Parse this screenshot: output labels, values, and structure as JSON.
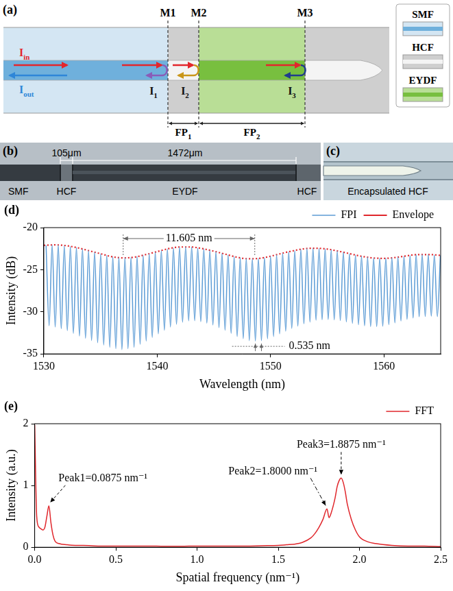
{
  "schematic": {
    "letter": "(a)",
    "mirrors": [
      "M1",
      "M2",
      "M3"
    ],
    "incident": {
      "main": "I",
      "sub": "in"
    },
    "output": {
      "main": "I",
      "sub": "out"
    },
    "reflections": [
      {
        "main": "I",
        "sub": "1"
      },
      {
        "main": "I",
        "sub": "2"
      },
      {
        "main": "I",
        "sub": "3"
      }
    ],
    "cavities": [
      {
        "main": "FP",
        "sub": "1"
      },
      {
        "main": "FP",
        "sub": "2"
      }
    ],
    "legend": [
      {
        "label": "SMF",
        "color": "#d4e6f3"
      },
      {
        "label": "HCF",
        "color": "#cfcfcf"
      },
      {
        "label": "EYDF",
        "color": "#b9de96"
      }
    ]
  },
  "micrograph": {
    "letter": "(b)",
    "labels": [
      "SMF",
      "HCF",
      "EYDF",
      "HCF"
    ],
    "dimensions": [
      "105μm",
      "1472μm"
    ]
  },
  "inset": {
    "letter": "(c)",
    "label": "Encapsulated HCF"
  },
  "chart_data": [
    {
      "letter": "(d)",
      "type": "line",
      "x_label": "Wavelength (nm)",
      "y_label": "Intensity (dB)",
      "xlim": [
        1530,
        1565
      ],
      "xticks": [
        1530,
        1540,
        1550,
        1560
      ],
      "ylim": [
        -35,
        -20
      ],
      "yticks": [
        -35,
        -30,
        -25,
        -20
      ],
      "grid": false,
      "legend": "top-right",
      "series": [
        {
          "name": "FPI",
          "color": "#5b9bd5",
          "line_style": "solid",
          "x": [
            1530.2,
            1530.468,
            1530.735,
            1531.003,
            1531.27,
            1531.538,
            1531.805,
            1532.073,
            1532.34,
            1532.608,
            1532.875,
            1533.143,
            1533.41,
            1533.678,
            1533.945,
            1534.213,
            1534.48,
            1534.748,
            1535.015,
            1535.283,
            1535.55,
            1535.818,
            1536.085,
            1536.353,
            1536.62,
            1536.888,
            1537.155,
            1537.423,
            1537.69,
            1537.958,
            1538.225,
            1538.493,
            1538.76,
            1539.028,
            1539.295,
            1539.563,
            1539.83,
            1540.098,
            1540.365,
            1540.633,
            1540.9,
            1541.168,
            1541.435,
            1541.703,
            1541.97,
            1542.238,
            1542.505,
            1542.773,
            1543.04,
            1543.308,
            1543.575,
            1543.843,
            1544.11,
            1544.378,
            1544.645,
            1544.913,
            1545.18,
            1545.448,
            1545.715,
            1545.983,
            1546.25,
            1546.518,
            1546.785,
            1547.053,
            1547.32,
            1547.588,
            1547.855,
            1548.123,
            1548.39,
            1548.658,
            1548.925,
            1549.193,
            1549.46,
            1549.728,
            1549.995,
            1550.263,
            1550.53,
            1550.798,
            1551.065,
            1551.333,
            1551.6,
            1551.868,
            1552.135,
            1552.403,
            1552.67,
            1552.938,
            1553.205,
            1553.473,
            1553.74,
            1554.008,
            1554.275,
            1554.543,
            1554.81,
            1555.078,
            1555.345,
            1555.613,
            1555.88,
            1556.148,
            1556.415,
            1556.683,
            1556.95,
            1557.218,
            1557.485,
            1557.753,
            1558.02,
            1558.288,
            1558.555,
            1558.823,
            1559.09,
            1559.358,
            1559.625,
            1559.893,
            1560.16,
            1560.428,
            1560.695,
            1560.963,
            1561.23,
            1561.498,
            1561.765,
            1562.033,
            1562.3,
            1562.568,
            1562.835,
            1563.103,
            1563.37,
            1563.638,
            1563.905,
            1564.173,
            1564.44,
            1564.708,
            1564.975
          ],
          "values": [
            -22.09,
            -31.64,
            -22.06,
            -31.8,
            -22.08,
            -32.02,
            -22.13,
            -32.24,
            -22.24,
            -32.56,
            -22.37,
            -32.87,
            -22.54,
            -33.14,
            -22.73,
            -33.41,
            -22.92,
            -33.67,
            -23.11,
            -33.94,
            -23.29,
            -34.21,
            -23.46,
            -34.37,
            -23.54,
            -34.48,
            -23.58,
            -34.37,
            -23.53,
            -34.21,
            -23.43,
            -33.85,
            -23.27,
            -33.48,
            -23.1,
            -33.05,
            -22.91,
            -32.62,
            -22.72,
            -32.19,
            -22.54,
            -31.8,
            -22.41,
            -31.48,
            -22.31,
            -31.23,
            -22.3,
            -31.07,
            -22.31,
            -31.06,
            -22.42,
            -31.17,
            -22.53,
            -31.35,
            -22.69,
            -31.57,
            -22.86,
            -31.87,
            -23.05,
            -32.19,
            -23.24,
            -32.56,
            -23.42,
            -32.93,
            -23.56,
            -33.19,
            -23.67,
            -33.41,
            -23.68,
            -33.47,
            -23.65,
            -33.42,
            -23.54,
            -33.21,
            -23.4,
            -32.94,
            -23.21,
            -32.62,
            -23.03,
            -32.3,
            -22.87,
            -31.98,
            -22.72,
            -31.7,
            -22.58,
            -31.43,
            -22.49,
            -31.21,
            -22.46,
            -31.0,
            -22.48,
            -30.95,
            -22.53,
            -30.91,
            -22.64,
            -30.96,
            -22.77,
            -31.04,
            -22.92,
            -31.2,
            -23.09,
            -31.37,
            -23.25,
            -31.53,
            -23.41,
            -31.66,
            -23.51,
            -31.76,
            -23.6,
            -31.76,
            -23.63,
            -31.71,
            -23.63,
            -31.53,
            -23.58,
            -31.31,
            -23.5,
            -31.1,
            -23.4,
            -30.89,
            -23.31,
            -30.73,
            -23.22,
            -30.59,
            -23.2,
            -30.54,
            -23.2,
            -30.52,
            -23.24,
            -30.57,
            -23.3
          ]
        },
        {
          "name": "Envelope",
          "color": "#e0262b",
          "line_style": "dotted",
          "x": [
            1530,
            1531,
            1532,
            1533,
            1534,
            1535,
            1536,
            1537,
            1538,
            1539,
            1540,
            1541,
            1542,
            1543,
            1544,
            1545,
            1546,
            1547,
            1548,
            1549,
            1550,
            1551,
            1552,
            1553,
            1554,
            1555,
            1556,
            1557,
            1558,
            1559,
            1560,
            1561,
            1562,
            1563,
            1564,
            1565
          ],
          "values": [
            -22.1,
            -22.05,
            -22.15,
            -22.4,
            -22.75,
            -23.1,
            -23.45,
            -23.6,
            -23.5,
            -23.2,
            -22.85,
            -22.5,
            -22.3,
            -22.3,
            -22.5,
            -22.8,
            -23.15,
            -23.5,
            -23.7,
            -23.65,
            -23.4,
            -23.05,
            -22.75,
            -22.5,
            -22.45,
            -22.55,
            -22.8,
            -23.1,
            -23.4,
            -23.6,
            -23.65,
            -23.55,
            -23.35,
            -23.2,
            -23.2,
            -23.3
          ]
        }
      ],
      "annotations": [
        {
          "text": "11.605 nm",
          "x": [
            1537.0,
            1548.605
          ],
          "y": -21.3
        },
        {
          "text": "0.535 nm",
          "x": [
            1548.658,
            1549.193
          ],
          "y": -34.1
        }
      ]
    },
    {
      "letter": "(e)",
      "type": "line",
      "x_label": "Spatial frequency (nm⁻¹)",
      "y_label": "Intensity (a.u.)",
      "xlim": [
        0,
        2.5
      ],
      "xticks": [
        {
          "value": 0,
          "label": "0.0"
        },
        0.5,
        {
          "value": 1,
          "label": "1.0"
        },
        1.5,
        {
          "value": 2,
          "label": "2.0"
        },
        2.5
      ],
      "ylim": [
        0,
        2
      ],
      "yticks": [
        0,
        1,
        2
      ],
      "grid": false,
      "legend": "top-right",
      "series": [
        {
          "name": "FFT",
          "color": "#e0262b",
          "line_style": "solid",
          "x": [
            0,
            0.0125,
            0.025,
            0.0375,
            0.05,
            0.0625,
            0.075,
            0.0875,
            0.1,
            0.1125,
            0.125,
            0.15,
            0.2,
            0.25,
            0.3,
            0.4,
            0.5,
            0.6,
            0.7,
            0.8,
            0.9,
            1.0,
            1.1,
            1.2,
            1.3,
            1.4,
            1.5,
            1.55,
            1.6,
            1.65,
            1.7,
            1.725,
            1.75,
            1.775,
            1.8,
            1.8125,
            1.825,
            1.85,
            1.8625,
            1.875,
            1.8875,
            1.9,
            1.9125,
            1.925,
            1.95,
            1.975,
            2.0,
            2.05,
            2.1,
            2.2,
            2.3,
            2.4,
            2.5
          ],
          "values": [
            1.98,
            0.5,
            0.33,
            0.3,
            0.28,
            0.32,
            0.5,
            0.67,
            0.4,
            0.2,
            0.1,
            0.06,
            0.04,
            0.03,
            0.03,
            0.02,
            0.02,
            0.02,
            0.02,
            0.015,
            0.015,
            0.02,
            0.02,
            0.02,
            0.02,
            0.025,
            0.03,
            0.04,
            0.05,
            0.08,
            0.15,
            0.22,
            0.32,
            0.45,
            0.62,
            0.48,
            0.55,
            0.8,
            0.98,
            1.08,
            1.12,
            1.05,
            0.9,
            0.7,
            0.45,
            0.28,
            0.17,
            0.09,
            0.06,
            0.03,
            0.02,
            0.02,
            0.01
          ]
        }
      ],
      "annotations": [
        {
          "text": "Peak1=0.0875 nm⁻¹",
          "x": 0.0875,
          "y": 0.67
        },
        {
          "text": "Peak2=1.8000 nm⁻¹",
          "x": 1.8,
          "y": 0.62
        },
        {
          "text": "Peak3=1.8875 nm⁻¹",
          "x": 1.8875,
          "y": 1.12
        }
      ]
    }
  ]
}
